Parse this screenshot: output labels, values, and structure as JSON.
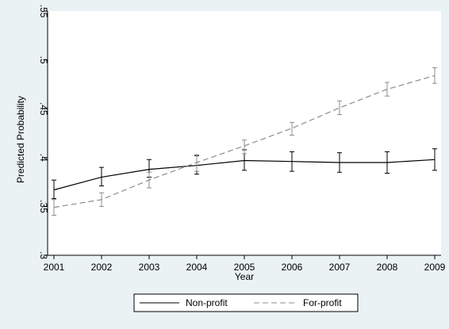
{
  "chart_data": {
    "type": "line",
    "title": "",
    "xlabel": "Year",
    "ylabel": "Predicted Probability",
    "x": [
      2001,
      2002,
      2003,
      2004,
      2005,
      2006,
      2007,
      2008,
      2009
    ],
    "xticks": [
      "2001",
      "2002",
      "2003",
      "2004",
      "2005",
      "2006",
      "2007",
      "2008",
      "2009"
    ],
    "yticks": [
      {
        "value": 0.3,
        "label": ".3"
      },
      {
        "value": 0.35,
        "label": ".35"
      },
      {
        "value": 0.4,
        "label": ".4"
      },
      {
        "value": 0.45,
        "label": ".45"
      },
      {
        "value": 0.5,
        "label": ".5"
      },
      {
        "value": 0.55,
        "label": ".55"
      }
    ],
    "ylim": [
      0.3,
      0.55
    ],
    "grid": false,
    "legend_position": "bottom",
    "series": [
      {
        "name": "Non-profit",
        "style": "solid",
        "color": "#000000",
        "values": [
          0.367,
          0.38,
          0.388,
          0.392,
          0.397,
          0.396,
          0.395,
          0.395,
          0.398
        ],
        "lower": [
          0.358,
          0.371,
          0.38,
          0.383,
          0.387,
          0.386,
          0.385,
          0.384,
          0.387
        ],
        "upper": [
          0.377,
          0.39,
          0.398,
          0.402,
          0.408,
          0.406,
          0.405,
          0.406,
          0.409
        ]
      },
      {
        "name": "For-profit",
        "style": "dashed",
        "color": "#8c8c8c",
        "values": [
          0.349,
          0.357,
          0.377,
          0.395,
          0.412,
          0.43,
          0.451,
          0.47,
          0.484
        ],
        "lower": [
          0.341,
          0.35,
          0.369,
          0.386,
          0.404,
          0.423,
          0.444,
          0.463,
          0.476
        ],
        "upper": [
          0.357,
          0.364,
          0.385,
          0.403,
          0.418,
          0.436,
          0.458,
          0.477,
          0.492
        ]
      }
    ]
  }
}
